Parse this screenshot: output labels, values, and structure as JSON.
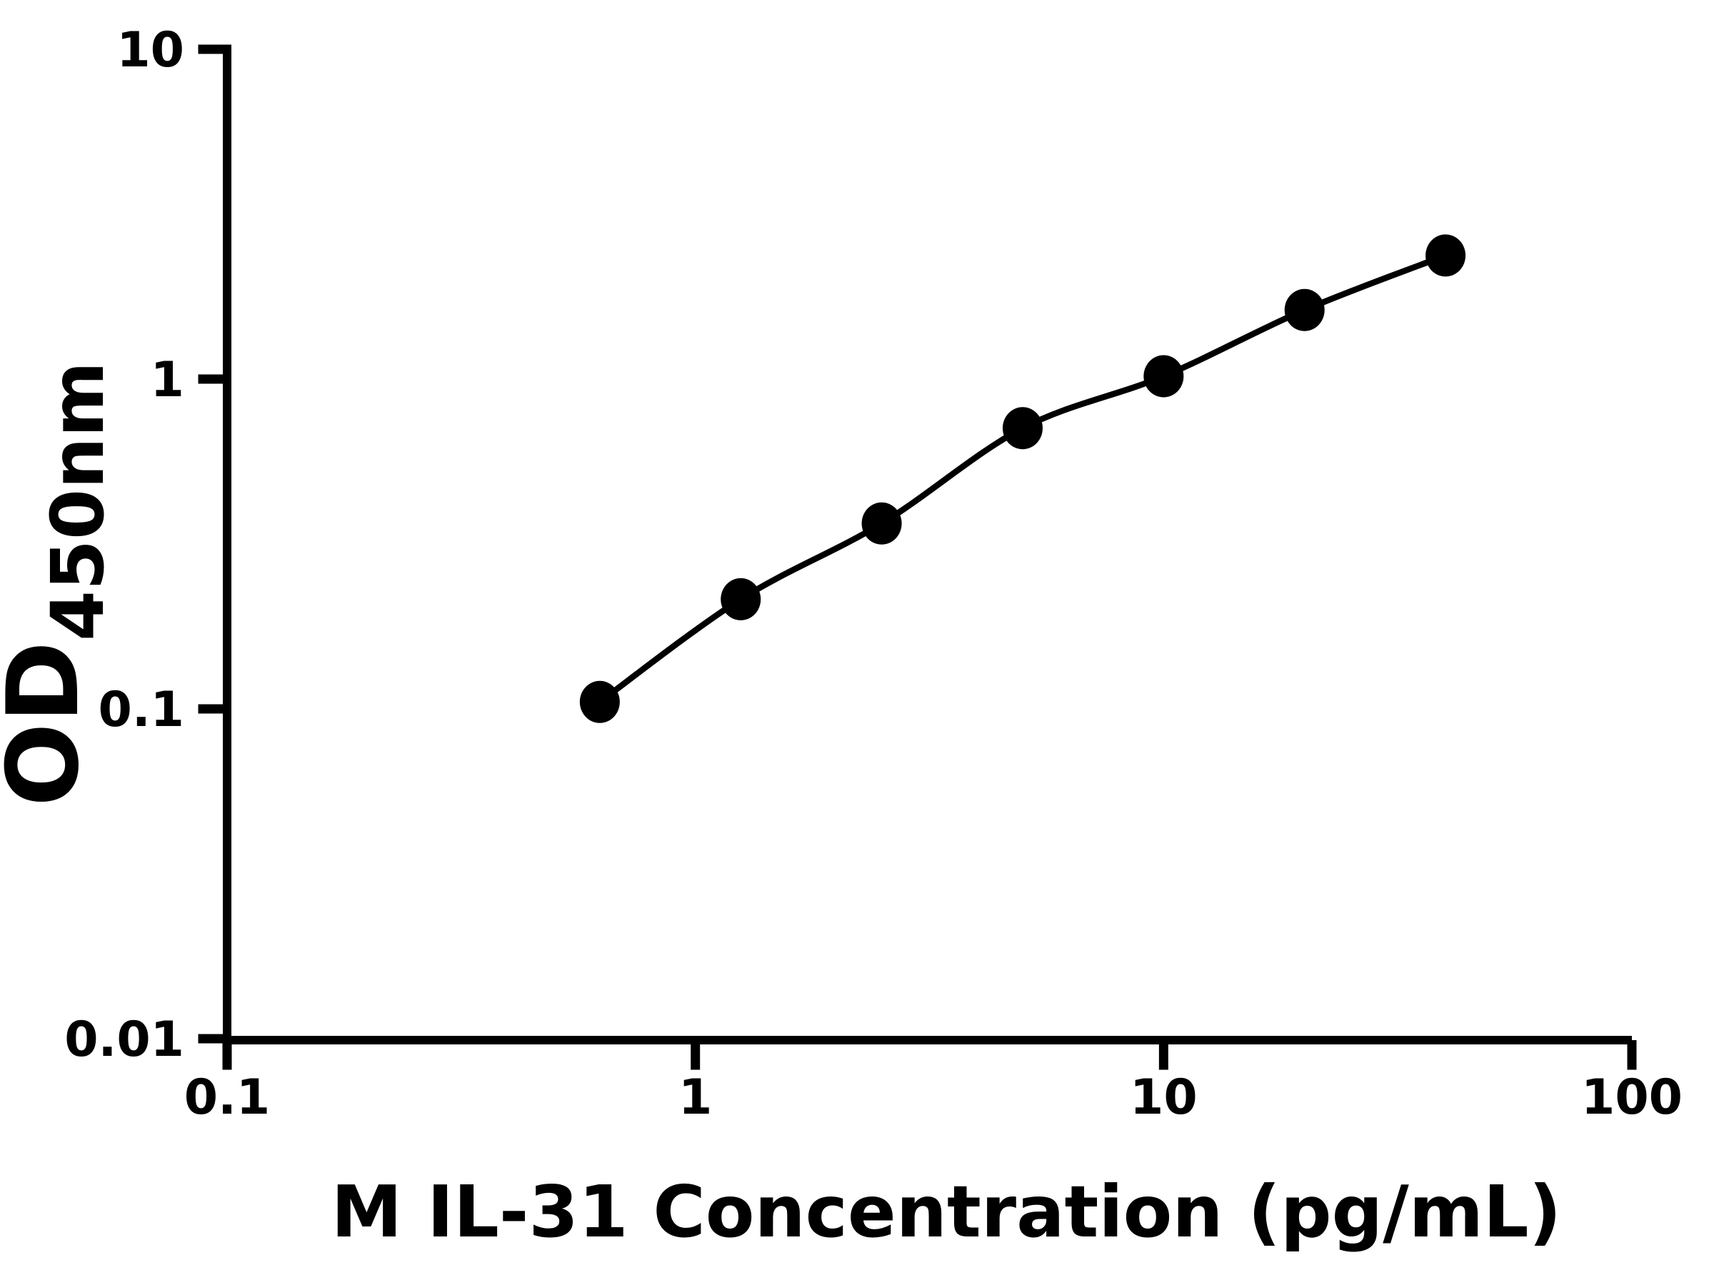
{
  "chart_data": {
    "type": "scatter",
    "title": "",
    "xlabel": "M IL-31 Concentration (pg/mL)",
    "ylabel_main": "OD",
    "ylabel_sub": "450nm",
    "xscale": "log",
    "yscale": "log",
    "xlim": [
      0.1,
      100
    ],
    "ylim": [
      0.01,
      10
    ],
    "grid": false,
    "legend_position": "none",
    "x_ticks": [
      {
        "value": 0.1,
        "label": "0.1"
      },
      {
        "value": 1,
        "label": "1"
      },
      {
        "value": 10,
        "label": "10"
      },
      {
        "value": 100,
        "label": "100"
      }
    ],
    "y_ticks": [
      {
        "value": 0.01,
        "label": "0.01"
      },
      {
        "value": 0.1,
        "label": "0.1"
      },
      {
        "value": 1,
        "label": "1"
      },
      {
        "value": 10,
        "label": "10"
      }
    ],
    "series": [
      {
        "x": [
          0.625,
          1.25,
          2.5,
          5,
          10,
          20,
          40
        ],
        "y": [
          0.105,
          0.215,
          0.365,
          0.71,
          1.02,
          1.62,
          2.37
        ],
        "marker": "filled-circle",
        "line": "smooth",
        "color": "#000000"
      }
    ],
    "colors": {
      "foreground": "#000000",
      "background": "#ffffff"
    }
  }
}
